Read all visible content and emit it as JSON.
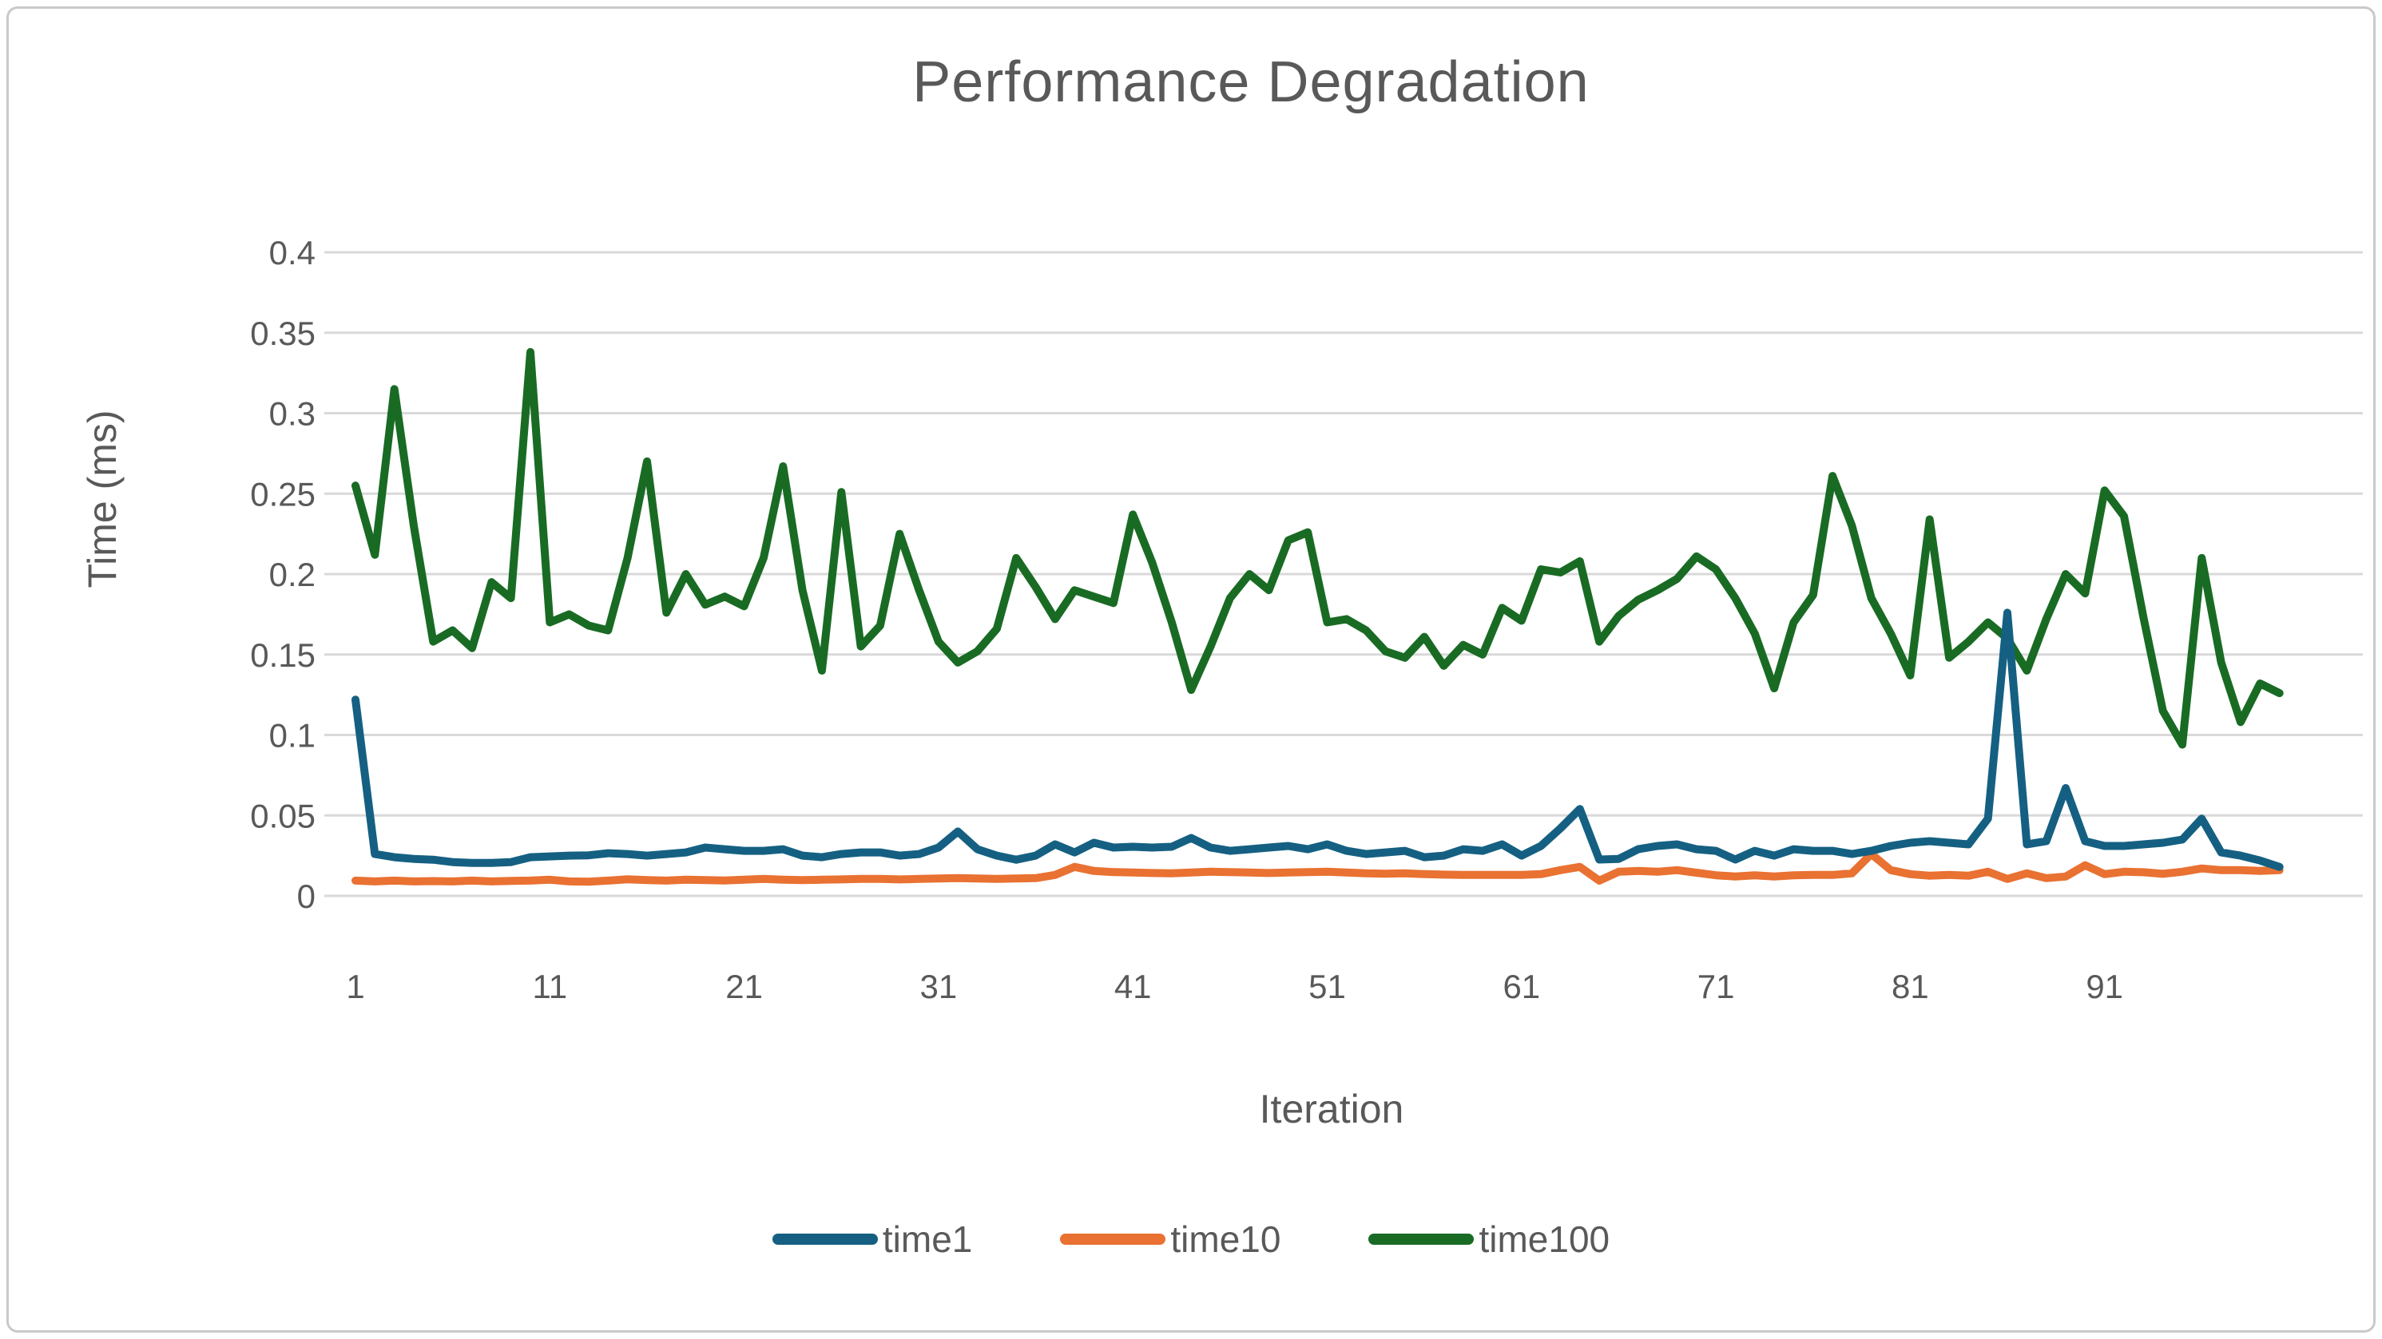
{
  "chart": {
    "title": "Performance Degradation"
  },
  "chart_data": {
    "type": "line",
    "title": "Performance Degradation",
    "xlabel": "Iteration",
    "ylabel": "Time (ms)",
    "ylim": [
      0,
      0.4
    ],
    "grid": true,
    "legend_position": "bottom",
    "y_tick_labels": [
      "0",
      "0.05",
      "0.1",
      "0.15",
      "0.2",
      "0.25",
      "0.3",
      "0.35",
      "0.4"
    ],
    "y_tick_values": [
      0,
      0.05,
      0.1,
      0.15,
      0.2,
      0.25,
      0.3,
      0.35,
      0.4
    ],
    "x_tick_labels": [
      "1",
      "11",
      "21",
      "31",
      "41",
      "51",
      "61",
      "71",
      "81",
      "91"
    ],
    "x_tick_values": [
      1,
      11,
      21,
      31,
      41,
      51,
      61,
      71,
      81,
      91
    ],
    "x_range": [
      1,
      100
    ],
    "series": [
      {
        "name": "time1",
        "color": "#156082",
        "values": [
          0.122,
          0.026,
          0.024,
          0.023,
          0.0225,
          0.021,
          0.0205,
          0.0205,
          0.021,
          0.024,
          0.0245,
          0.025,
          0.0252,
          0.0265,
          0.026,
          0.025,
          0.026,
          0.027,
          0.03,
          0.029,
          0.028,
          0.028,
          0.029,
          0.025,
          0.024,
          0.026,
          0.027,
          0.027,
          0.025,
          0.026,
          0.03,
          0.04,
          0.029,
          0.025,
          0.0225,
          0.025,
          0.032,
          0.027,
          0.033,
          0.03,
          0.0305,
          0.03,
          0.0305,
          0.036,
          0.03,
          0.028,
          0.029,
          0.03,
          0.031,
          0.029,
          0.032,
          0.028,
          0.026,
          0.027,
          0.028,
          0.024,
          0.025,
          0.029,
          0.028,
          0.032,
          0.025,
          0.031,
          0.042,
          0.054,
          0.0226,
          0.023,
          0.029,
          0.031,
          0.032,
          0.029,
          0.028,
          0.0226,
          0.028,
          0.025,
          0.029,
          0.028,
          0.028,
          0.026,
          0.028,
          0.031,
          0.033,
          0.034,
          0.033,
          0.032,
          0.048,
          0.176,
          0.032,
          0.034,
          0.067,
          0.034,
          0.031,
          0.031,
          0.032,
          0.033,
          0.035,
          0.048,
          0.027,
          0.025,
          0.022,
          0.018
        ]
      },
      {
        "name": "time10",
        "color": "#E97132",
        "values": [
          0.0095,
          0.009,
          0.0095,
          0.009,
          0.0092,
          0.009,
          0.0095,
          0.009,
          0.0093,
          0.0095,
          0.01,
          0.009,
          0.0088,
          0.0095,
          0.0103,
          0.0098,
          0.0095,
          0.01,
          0.0098,
          0.0096,
          0.01,
          0.0105,
          0.01,
          0.0098,
          0.01,
          0.0102,
          0.0105,
          0.0105,
          0.0102,
          0.0105,
          0.0108,
          0.011,
          0.0108,
          0.0105,
          0.0108,
          0.011,
          0.013,
          0.018,
          0.0155,
          0.0148,
          0.0145,
          0.0142,
          0.014,
          0.0145,
          0.015,
          0.0148,
          0.0145,
          0.0142,
          0.0145,
          0.0148,
          0.015,
          0.0145,
          0.014,
          0.0138,
          0.014,
          0.0135,
          0.0132,
          0.013,
          0.013,
          0.013,
          0.013,
          0.0135,
          0.016,
          0.018,
          0.0095,
          0.015,
          0.0155,
          0.015,
          0.016,
          0.0144,
          0.0128,
          0.012,
          0.0128,
          0.012,
          0.0128,
          0.013,
          0.013,
          0.014,
          0.026,
          0.016,
          0.0135,
          0.0125,
          0.013,
          0.0125,
          0.015,
          0.0105,
          0.014,
          0.011,
          0.012,
          0.019,
          0.0135,
          0.015,
          0.0147,
          0.0137,
          0.015,
          0.017,
          0.016,
          0.016,
          0.0155,
          0.016
        ]
      },
      {
        "name": "time100",
        "color": "#196B24",
        "values": [
          0.255,
          0.212,
          0.315,
          0.23,
          0.158,
          0.165,
          0.154,
          0.195,
          0.185,
          0.338,
          0.17,
          0.175,
          0.168,
          0.165,
          0.21,
          0.27,
          0.176,
          0.2,
          0.181,
          0.186,
          0.18,
          0.21,
          0.267,
          0.19,
          0.14,
          0.251,
          0.155,
          0.168,
          0.225,
          0.19,
          0.158,
          0.145,
          0.152,
          0.166,
          0.21,
          0.192,
          0.172,
          0.19,
          0.186,
          0.182,
          0.237,
          0.207,
          0.17,
          0.128,
          0.155,
          0.185,
          0.2,
          0.19,
          0.221,
          0.226,
          0.17,
          0.172,
          0.165,
          0.152,
          0.148,
          0.161,
          0.143,
          0.156,
          0.15,
          0.179,
          0.171,
          0.203,
          0.201,
          0.208,
          0.158,
          0.174,
          0.184,
          0.19,
          0.197,
          0.211,
          0.203,
          0.185,
          0.163,
          0.129,
          0.17,
          0.187,
          0.261,
          0.23,
          0.185,
          0.163,
          0.137,
          0.234,
          0.148,
          0.158,
          0.17,
          0.16,
          0.14,
          0.172,
          0.2,
          0.188,
          0.252,
          0.236,
          0.173,
          0.115,
          0.094,
          0.21,
          0.145,
          0.108,
          0.132,
          0.126
        ]
      }
    ],
    "colors": {
      "grid": "#D9D9D9",
      "text": "#595959",
      "frame": "#C9C9C9",
      "background": "#FFFFFF"
    }
  }
}
